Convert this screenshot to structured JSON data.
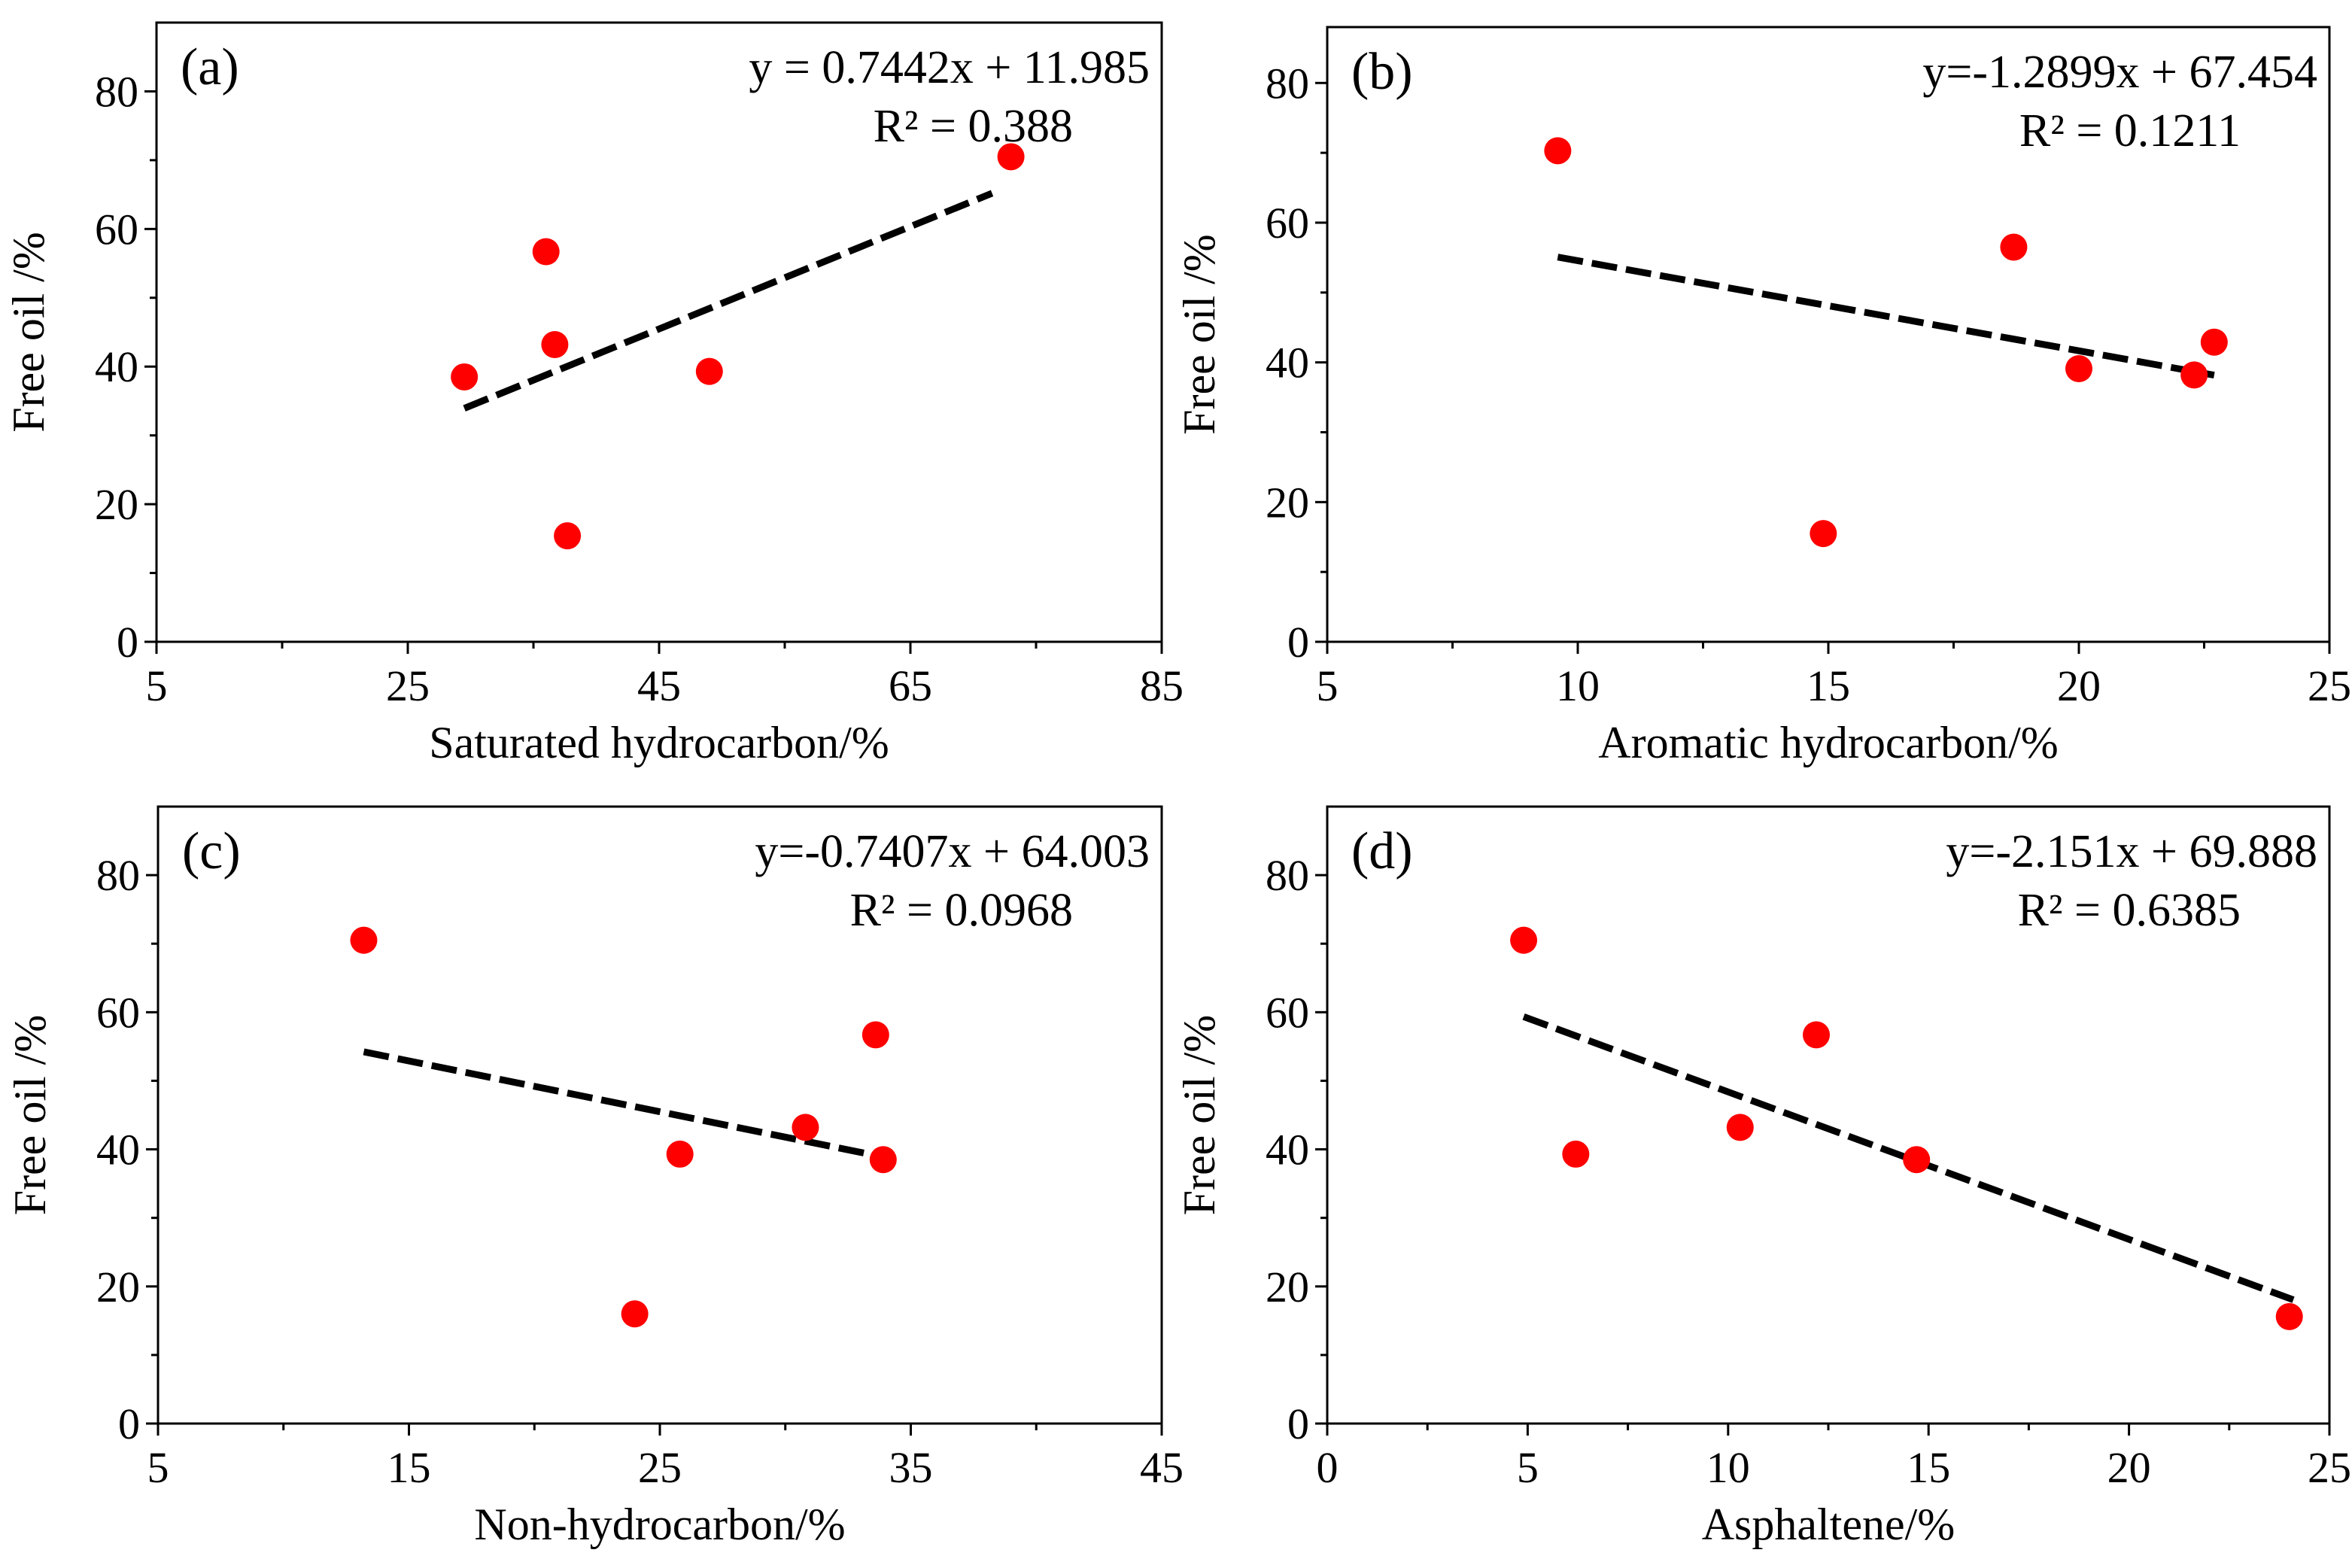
{
  "figure": {
    "marker_color": "#ff0000",
    "trend_color": "#000000"
  },
  "chart_data": [
    {
      "type": "scatter",
      "panel_label": "(a)",
      "xlabel": "Saturated hydrocarbon/%",
      "ylabel": "Free oil /%",
      "xlim": [
        5,
        85
      ],
      "ylim": [
        0,
        90
      ],
      "xticks": [
        5,
        25,
        45,
        65,
        85
      ],
      "yticks": [
        0,
        20,
        40,
        60,
        80
      ],
      "xtick_labels": [
        "5",
        "25",
        "45",
        "65",
        "85"
      ],
      "ytick_labels": [
        "0",
        "20",
        "40",
        "60",
        "80"
      ],
      "points": [
        {
          "x": 29.5,
          "y": 38.5
        },
        {
          "x": 36.0,
          "y": 56.7
        },
        {
          "x": 36.7,
          "y": 43.2
        },
        {
          "x": 37.7,
          "y": 15.4
        },
        {
          "x": 49.0,
          "y": 39.3
        },
        {
          "x": 73.0,
          "y": 70.5
        }
      ],
      "trendline": {
        "x": [
          29.5,
          71.5
        ],
        "slope": 0.7442,
        "intercept": 11.985
      },
      "equation": "y = 0.7442x + 11.985",
      "r2": "R² = 0.388"
    },
    {
      "type": "scatter",
      "panel_label": "(b)",
      "xlabel": "Aromatic hydrocarbon/%",
      "ylabel": "Free oil /%",
      "xlim": [
        5,
        25
      ],
      "ylim": [
        0,
        88
      ],
      "xticks": [
        5,
        10,
        15,
        20,
        25
      ],
      "yticks": [
        0,
        20,
        40,
        60,
        80
      ],
      "xtick_labels": [
        "5",
        "10",
        "15",
        "20",
        "25"
      ],
      "ytick_labels": [
        "0",
        "20",
        "40",
        "60",
        "80"
      ],
      "points": [
        {
          "x": 9.6,
          "y": 70.3
        },
        {
          "x": 14.9,
          "y": 15.5
        },
        {
          "x": 18.7,
          "y": 56.5
        },
        {
          "x": 20.0,
          "y": 39.1
        },
        {
          "x": 22.3,
          "y": 38.2
        },
        {
          "x": 22.7,
          "y": 42.9
        }
      ],
      "trendline": {
        "x": [
          9.6,
          22.7
        ],
        "slope": -1.2899,
        "intercept": 67.454
      },
      "equation": "y=-1.2899x + 67.454",
      "r2": "R² = 0.1211"
    },
    {
      "type": "scatter",
      "panel_label": "(c)",
      "xlabel": "Non-hydrocarbon/%",
      "ylabel": "Free oil /%",
      "xlim": [
        5,
        45
      ],
      "ylim": [
        0,
        90
      ],
      "xticks": [
        5,
        15,
        25,
        35,
        45
      ],
      "yticks": [
        0,
        20,
        40,
        60,
        80
      ],
      "xtick_labels": [
        "5",
        "15",
        "25",
        "35",
        "45"
      ],
      "ytick_labels": [
        "0",
        "20",
        "40",
        "60",
        "80"
      ],
      "points": [
        {
          "x": 13.2,
          "y": 70.5
        },
        {
          "x": 24.0,
          "y": 16.0
        },
        {
          "x": 25.8,
          "y": 39.3
        },
        {
          "x": 30.8,
          "y": 43.2
        },
        {
          "x": 33.6,
          "y": 56.7
        },
        {
          "x": 33.9,
          "y": 38.5
        }
      ],
      "trendline": {
        "x": [
          13.2,
          33.9
        ],
        "slope": -0.7407,
        "intercept": 64.003
      },
      "equation": "y=-0.7407x + 64.003",
      "r2": "R² = 0.0968"
    },
    {
      "type": "scatter",
      "panel_label": "(d)",
      "xlabel": "Asphaltene/%",
      "ylabel": "Free oil /%",
      "xlim": [
        0,
        25
      ],
      "ylim": [
        0,
        90
      ],
      "xticks": [
        0,
        5,
        10,
        15,
        20,
        25
      ],
      "yticks": [
        0,
        20,
        40,
        60,
        80
      ],
      "xtick_labels": [
        "0",
        "5",
        "10",
        "15",
        "20",
        "25"
      ],
      "ytick_labels": [
        "0",
        "20",
        "40",
        "60",
        "80"
      ],
      "points": [
        {
          "x": 4.9,
          "y": 70.5
        },
        {
          "x": 6.2,
          "y": 39.3
        },
        {
          "x": 10.3,
          "y": 43.2
        },
        {
          "x": 12.2,
          "y": 56.7
        },
        {
          "x": 14.7,
          "y": 38.5
        },
        {
          "x": 24.0,
          "y": 15.6
        }
      ],
      "trendline": {
        "x": [
          4.9,
          24.1
        ],
        "slope": -2.151,
        "intercept": 69.888
      },
      "equation": "y=-2.151x + 69.888",
      "r2": "R² = 0.6385"
    }
  ]
}
